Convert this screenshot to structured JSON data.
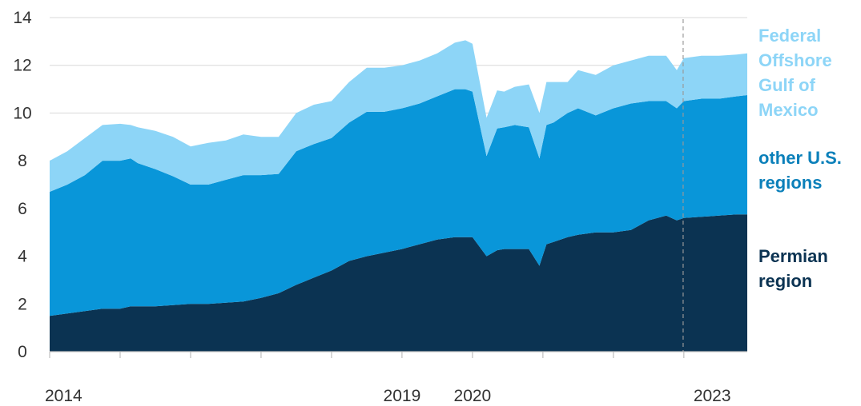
{
  "chart_data": {
    "type": "area",
    "stacked": true,
    "title": "",
    "xlabel": "",
    "ylabel": "",
    "ylim": [
      0,
      14
    ],
    "yticks": [
      0,
      2,
      4,
      6,
      8,
      10,
      12,
      14
    ],
    "xlim": [
      2014,
      2023.9
    ],
    "xtick_labels": [
      {
        "x": 2014,
        "label": "2014"
      },
      {
        "x": 2019,
        "label": "2019"
      },
      {
        "x": 2020,
        "label": "2020"
      },
      {
        "x": 2023,
        "label": "2023"
      }
    ],
    "xtick_marks": [
      2014,
      2015,
      2016,
      2017,
      2018,
      2019,
      2020,
      2021,
      2022,
      2023
    ],
    "forecast_start": 2022.99,
    "grid": "horizontal",
    "legend_position": "right",
    "colors": {
      "Permian region": "#0b3352",
      "other U.S. regions": "#0996d9",
      "Federal Offshore Gulf of Mexico": "#8dd5f7",
      "legend_federal": "#8dd5f7",
      "legend_other": "#0b80ba",
      "legend_permian": "#0b3352",
      "axis_text": "#333333",
      "gridline": "#d9d9d9",
      "dashed_line": "#999999"
    },
    "x": [
      2014.0,
      2014.25,
      2014.5,
      2014.75,
      2015.0,
      2015.15,
      2015.25,
      2015.5,
      2015.75,
      2016.0,
      2016.25,
      2016.5,
      2016.75,
      2017.0,
      2017.25,
      2017.5,
      2017.75,
      2018.0,
      2018.25,
      2018.5,
      2018.75,
      2019.0,
      2019.25,
      2019.5,
      2019.75,
      2019.9,
      2020.0,
      2020.2,
      2020.35,
      2020.45,
      2020.6,
      2020.8,
      2020.95,
      2021.05,
      2021.15,
      2021.35,
      2021.5,
      2021.75,
      2022.0,
      2022.25,
      2022.5,
      2022.75,
      2022.9,
      2023.0,
      2023.25,
      2023.5,
      2023.75,
      2023.9
    ],
    "series": [
      {
        "name": "Permian region",
        "values": [
          1.5,
          1.6,
          1.7,
          1.8,
          1.8,
          1.9,
          1.9,
          1.9,
          1.95,
          2.0,
          2.0,
          2.05,
          2.1,
          2.25,
          2.45,
          2.8,
          3.1,
          3.4,
          3.8,
          4.0,
          4.15,
          4.3,
          4.5,
          4.7,
          4.8,
          4.8,
          4.8,
          4.0,
          4.25,
          4.3,
          4.3,
          4.3,
          3.6,
          4.5,
          4.6,
          4.8,
          4.9,
          5.0,
          5.0,
          5.1,
          5.5,
          5.7,
          5.5,
          5.6,
          5.65,
          5.7,
          5.75,
          5.75
        ]
      },
      {
        "name": "other U.S. regions",
        "values": [
          5.2,
          5.4,
          5.7,
          6.2,
          6.2,
          6.2,
          6.0,
          5.75,
          5.4,
          5.0,
          5.0,
          5.15,
          5.3,
          5.15,
          5.0,
          5.6,
          5.6,
          5.55,
          5.8,
          6.05,
          5.9,
          5.9,
          5.9,
          6.0,
          6.2,
          6.2,
          6.1,
          4.2,
          5.1,
          5.1,
          5.2,
          5.1,
          4.5,
          5.0,
          5.0,
          5.2,
          5.3,
          4.9,
          5.2,
          5.3,
          5.0,
          4.8,
          4.7,
          4.9,
          4.95,
          4.9,
          4.95,
          5.0
        ]
      },
      {
        "name": "Federal Offshore Gulf of Mexico",
        "values": [
          1.3,
          1.4,
          1.55,
          1.5,
          1.55,
          1.4,
          1.5,
          1.6,
          1.65,
          1.6,
          1.75,
          1.65,
          1.7,
          1.6,
          1.55,
          1.6,
          1.65,
          1.55,
          1.7,
          1.85,
          1.85,
          1.8,
          1.8,
          1.8,
          1.95,
          2.05,
          2.0,
          1.6,
          1.6,
          1.5,
          1.6,
          1.8,
          1.9,
          1.8,
          1.7,
          1.3,
          1.6,
          1.7,
          1.8,
          1.8,
          1.9,
          1.9,
          1.6,
          1.8,
          1.8,
          1.8,
          1.75,
          1.75
        ]
      }
    ],
    "legend": [
      {
        "series": "Federal Offshore Gulf of Mexico",
        "lines": [
          "Federal",
          "Offshore",
          "Gulf of",
          "Mexico"
        ]
      },
      {
        "series": "other U.S. regions",
        "lines": [
          "other U.S.",
          "regions"
        ]
      },
      {
        "series": "Permian region",
        "lines": [
          "Permian",
          "region"
        ]
      }
    ]
  }
}
